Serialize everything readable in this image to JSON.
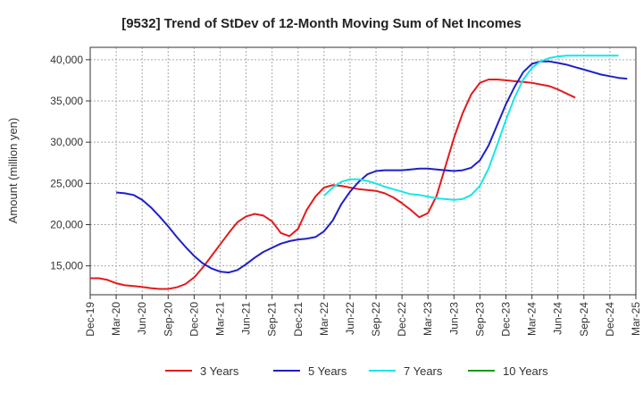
{
  "chart_data": {
    "type": "line",
    "title": "[9532]  Trend of StDev of 12-Month Moving Sum of Net Incomes",
    "xlabel": "",
    "ylabel": "Amount (million yen)",
    "x_tick_labels": [
      "Dec-19",
      "Mar-20",
      "Jun-20",
      "Sep-20",
      "Dec-20",
      "Mar-21",
      "Jun-21",
      "Sep-21",
      "Dec-21",
      "Mar-22",
      "Jun-22",
      "Sep-22",
      "Dec-22",
      "Mar-23",
      "Jun-23",
      "Sep-23",
      "Dec-23",
      "Mar-24",
      "Jun-24",
      "Sep-24",
      "Dec-24",
      "Mar-25"
    ],
    "y_ticks": [
      15000,
      20000,
      25000,
      30000,
      35000,
      40000
    ],
    "y_tick_labels": [
      "15,000",
      "20,000",
      "25,000",
      "30,000",
      "35,000",
      "40,000"
    ],
    "ylim": [
      11500,
      41500
    ],
    "grid": true,
    "legend_position": "bottom",
    "series": [
      {
        "name": "3 Years",
        "color": "#e41a1c",
        "values": [
          13500,
          13500,
          13300,
          12900,
          12650,
          12550,
          12450,
          12300,
          12200,
          12200,
          12400,
          12800,
          13600,
          14800,
          16200,
          17600,
          19000,
          20300,
          21000,
          21300,
          21100,
          20400,
          19000,
          18600,
          19500,
          21800,
          23400,
          24500,
          24800,
          24700,
          24500,
          24300,
          24200,
          24100,
          23800,
          23300,
          22600,
          21800,
          20900,
          21400,
          23500,
          27000,
          30500,
          33500,
          35800,
          37200,
          37600,
          37600,
          37500,
          37400,
          37300,
          37200,
          37000,
          36800,
          36400,
          35900,
          35400
        ],
        "start_index": 0
      },
      {
        "name": "5 Years",
        "color": "#1f1fc8",
        "values": [
          23900,
          23800,
          23600,
          23000,
          22100,
          21000,
          19800,
          18500,
          17300,
          16200,
          15300,
          14700,
          14300,
          14200,
          14500,
          15200,
          16000,
          16700,
          17200,
          17700,
          18000,
          18200,
          18300,
          18500,
          19200,
          20500,
          22500,
          24000,
          25200,
          26100,
          26500,
          26600,
          26600,
          26600,
          26700,
          26800,
          26800,
          26700,
          26600,
          26500,
          26600,
          26900,
          27800,
          29600,
          32100,
          34600,
          36700,
          38500,
          39500,
          39800,
          39800,
          39600,
          39400,
          39100,
          38800,
          38500,
          38200,
          38000,
          37800,
          37700
        ],
        "start_index": 3
      },
      {
        "name": "7 Years",
        "color": "#17e6e6",
        "values": [
          23500,
          24500,
          25200,
          25500,
          25500,
          25300,
          25000,
          24600,
          24300,
          24000,
          23700,
          23600,
          23400,
          23200,
          23100,
          23000,
          23100,
          23600,
          24700,
          26800,
          29700,
          32700,
          35400,
          37600,
          39000,
          39800,
          40200,
          40400,
          40500,
          40500,
          40500,
          40500,
          40500,
          40500,
          40500
        ],
        "start_index": 27
      },
      {
        "name": "10 Years",
        "color": "#1a9a1a",
        "values": [],
        "start_index": 0
      }
    ]
  }
}
